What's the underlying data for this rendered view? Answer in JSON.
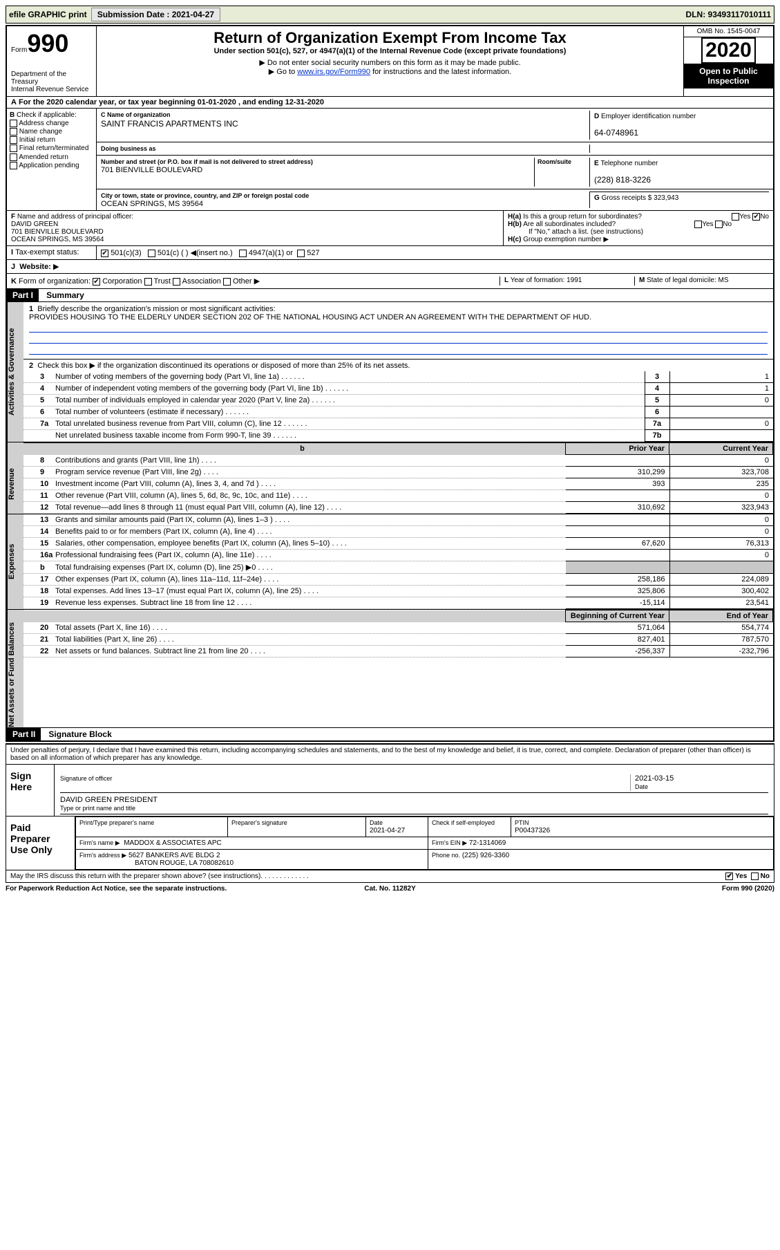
{
  "topbar": {
    "efile_label": "efile GRAPHIC print",
    "submission_label": "Submission Date : 2021-04-27",
    "dln_label": "DLN: 93493117010111"
  },
  "header": {
    "form_label": "Form",
    "form_number": "990",
    "department": "Department of the Treasury",
    "agency": "Internal Revenue Service",
    "title": "Return of Organization Exempt From Income Tax",
    "subtitle": "Under section 501(c), 527, or 4947(a)(1) of the Internal Revenue Code (except private foundations)",
    "note1": "Do not enter social security numbers on this form as it may be made public.",
    "note2_pre": "Go to ",
    "note2_link": "www.irs.gov/Form990",
    "note2_post": " for instructions and the latest information.",
    "omb": "OMB No. 1545-0047",
    "year": "2020",
    "inspect1": "Open to Public",
    "inspect2": "Inspection"
  },
  "line_a": "For the 2020 calendar year, or tax year beginning 01-01-2020    , and ending 12-31-2020",
  "box_b": {
    "label": "Check if applicable:",
    "opts": [
      "Address change",
      "Name change",
      "Initial return",
      "Final return/terminated",
      "Amended return",
      "Application pending"
    ]
  },
  "box_c": {
    "name_label": "Name of organization",
    "name": "SAINT FRANCIS APARTMENTS INC",
    "dba_label": "Doing business as",
    "dba": "",
    "addr_label": "Number and street (or P.O. box if mail is not delivered to street address)",
    "room_label": "Room/suite",
    "addr": "701 BIENVILLE BOULEVARD",
    "city_label": "City or town, state or province, country, and ZIP or foreign postal code",
    "city": "OCEAN SPRINGS, MS  39564"
  },
  "box_d": {
    "label": "Employer identification number",
    "value": "64-0748961"
  },
  "box_e": {
    "label": "Telephone number",
    "value": "(228) 818-3226"
  },
  "box_g": {
    "label": "Gross receipts $",
    "value": "323,943"
  },
  "box_f": {
    "label": "Name and address of principal officer:",
    "name": "DAVID GREEN",
    "addr1": "701 BIENVILLE BOULEVARD",
    "addr2": "OCEAN SPRINGS, MS  39564"
  },
  "box_h": {
    "ha_label": "Is this a group return for subordinates?",
    "ha_yes": "Yes",
    "ha_no": "No",
    "hb_label": "Are all subordinates included?",
    "hb_note": "If \"No,\" attach a list. (see instructions)",
    "hc_label": "Group exemption number"
  },
  "row_i": {
    "label": "Tax-exempt status:",
    "o1": "501(c)(3)",
    "o2": "501(c) (  )",
    "o2b": "(insert no.)",
    "o3": "4947(a)(1) or",
    "o4": "527"
  },
  "row_j": {
    "label": "Website:",
    "arrow": "▶"
  },
  "row_k": {
    "label": "Form of organization:",
    "o1": "Corporation",
    "o2": "Trust",
    "o3": "Association",
    "o4": "Other"
  },
  "row_l": {
    "label": "Year of formation:",
    "value": "1991"
  },
  "row_m": {
    "label": "State of legal domicile:",
    "value": "MS"
  },
  "part1": {
    "label": "Part I",
    "title": "Summary"
  },
  "summary": {
    "q1_label": "Briefly describe the organization's mission or most significant activities:",
    "q1_text": "PROVIDES HOUSING TO THE ELDERLY UNDER SECTION 202 OF THE NATIONAL HOUSING ACT UNDER AN AGREEMENT WITH THE DEPARTMENT OF HUD.",
    "q2": "Check this box ▶   if the organization discontinued its operations or disposed of more than 25% of its net assets.",
    "rows_ag": [
      {
        "n": "3",
        "desc": "Number of voting members of the governing body (Part VI, line 1a)",
        "box": "3",
        "val": "1"
      },
      {
        "n": "4",
        "desc": "Number of independent voting members of the governing body (Part VI, line 1b)",
        "box": "4",
        "val": "1"
      },
      {
        "n": "5",
        "desc": "Total number of individuals employed in calendar year 2020 (Part V, line 2a)",
        "box": "5",
        "val": "0"
      },
      {
        "n": "6",
        "desc": "Total number of volunteers (estimate if necessary)",
        "box": "6",
        "val": ""
      },
      {
        "n": "7a",
        "desc": "Total unrelated business revenue from Part VIII, column (C), line 12",
        "box": "7a",
        "val": "0"
      },
      {
        "n": "",
        "desc": "Net unrelated business taxable income from Form 990-T, line 39",
        "box": "7b",
        "val": ""
      }
    ],
    "prior_label": "Prior Year",
    "current_label": "Current Year",
    "beg_label": "Beginning of Current Year",
    "end_label": "End of Year",
    "rev": [
      {
        "n": "8",
        "desc": "Contributions and grants (Part VIII, line 1h)",
        "p": "",
        "c": "0"
      },
      {
        "n": "9",
        "desc": "Program service revenue (Part VIII, line 2g)",
        "p": "310,299",
        "c": "323,708"
      },
      {
        "n": "10",
        "desc": "Investment income (Part VIII, column (A), lines 3, 4, and 7d )",
        "p": "393",
        "c": "235"
      },
      {
        "n": "11",
        "desc": "Other revenue (Part VIII, column (A), lines 5, 6d, 8c, 9c, 10c, and 11e)",
        "p": "",
        "c": "0"
      },
      {
        "n": "12",
        "desc": "Total revenue—add lines 8 through 11 (must equal Part VIII, column (A), line 12)",
        "p": "310,692",
        "c": "323,943"
      }
    ],
    "exp": [
      {
        "n": "13",
        "desc": "Grants and similar amounts paid (Part IX, column (A), lines 1–3 )",
        "p": "",
        "c": "0"
      },
      {
        "n": "14",
        "desc": "Benefits paid to or for members (Part IX, column (A), line 4)",
        "p": "",
        "c": "0"
      },
      {
        "n": "15",
        "desc": "Salaries, other compensation, employee benefits (Part IX, column (A), lines 5–10)",
        "p": "67,620",
        "c": "76,313"
      },
      {
        "n": "16a",
        "desc": "Professional fundraising fees (Part IX, column (A), line 11e)",
        "p": "",
        "c": "0"
      },
      {
        "n": "b",
        "desc": "Total fundraising expenses (Part IX, column (D), line 25) ▶0",
        "p": "shade",
        "c": "shade"
      },
      {
        "n": "17",
        "desc": "Other expenses (Part IX, column (A), lines 11a–11d, 11f–24e)",
        "p": "258,186",
        "c": "224,089"
      },
      {
        "n": "18",
        "desc": "Total expenses. Add lines 13–17 (must equal Part IX, column (A), line 25)",
        "p": "325,806",
        "c": "300,402"
      },
      {
        "n": "19",
        "desc": "Revenue less expenses. Subtract line 18 from line 12",
        "p": "-15,114",
        "c": "23,541"
      }
    ],
    "net": [
      {
        "n": "20",
        "desc": "Total assets (Part X, line 16)",
        "p": "571,064",
        "c": "554,774"
      },
      {
        "n": "21",
        "desc": "Total liabilities (Part X, line 26)",
        "p": "827,401",
        "c": "787,570"
      },
      {
        "n": "22",
        "desc": "Net assets or fund balances. Subtract line 21 from line 20",
        "p": "-256,337",
        "c": "-232,796"
      }
    ]
  },
  "vlabels": {
    "ag": "Activities & Governance",
    "rev": "Revenue",
    "exp": "Expenses",
    "net": "Net Assets or Fund Balances"
  },
  "part2": {
    "label": "Part II",
    "title": "Signature Block"
  },
  "sig": {
    "penalty": "Under penalties of perjury, I declare that I have examined this return, including accompanying schedules and statements, and to the best of my knowledge and belief, it is true, correct, and complete. Declaration of preparer (other than officer) is based on all information of which preparer has any knowledge.",
    "sign_here": "Sign Here",
    "sig_officer_lbl": "Signature of officer",
    "date_lbl": "Date",
    "date_val": "2021-03-15",
    "name_title": "DAVID GREEN  PRESIDENT",
    "name_title_lbl": "Type or print name and title",
    "paid_prep": "Paid Preparer Use Only",
    "p_name_lbl": "Print/Type preparer's name",
    "p_sig_lbl": "Preparer's signature",
    "p_date_lbl": "Date",
    "p_date": "2021-04-27",
    "p_check_lbl": "Check     if self-employed",
    "ptin_lbl": "PTIN",
    "ptin": "P00437326",
    "firm_name_lbl": "Firm's name    ▶",
    "firm_name": "MADDOX & ASSOCIATES APC",
    "firm_ein_lbl": "Firm's EIN ▶",
    "firm_ein": "72-1314069",
    "firm_addr_lbl": "Firm's address ▶",
    "firm_addr1": "5627 BANKERS AVE BLDG 2",
    "firm_addr2": "BATON ROUGE, LA  708082610",
    "phone_lbl": "Phone no.",
    "phone": "(225) 926-3360",
    "discuss": "May the IRS discuss this return with the preparer shown above? (see instructions)",
    "yes": "Yes",
    "no": "No"
  },
  "footer": {
    "pra": "For Paperwork Reduction Act Notice, see the separate instructions.",
    "cat": "Cat. No. 11282Y",
    "form": "Form 990 (2020)"
  }
}
